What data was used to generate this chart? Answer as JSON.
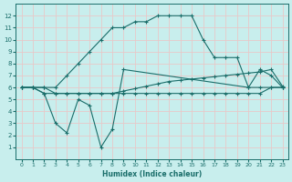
{
  "xlabel": "Humidex (Indice chaleur)",
  "xlim": [
    -0.5,
    23.5
  ],
  "ylim": [
    0,
    13
  ],
  "xticks": [
    0,
    1,
    2,
    3,
    4,
    5,
    6,
    7,
    8,
    9,
    10,
    11,
    12,
    13,
    14,
    15,
    16,
    17,
    18,
    19,
    20,
    21,
    22,
    23
  ],
  "yticks": [
    1,
    2,
    3,
    4,
    5,
    6,
    7,
    8,
    9,
    10,
    11,
    12
  ],
  "bg_color": "#c8eeed",
  "grid_color": "#e8c8c8",
  "line_color": "#1a6e6a",
  "series": [
    {
      "x": [
        0,
        1,
        2,
        3,
        4,
        5,
        6,
        7,
        8,
        9,
        10,
        11,
        12,
        13,
        14,
        15,
        16,
        17,
        18,
        19,
        20,
        21,
        22,
        23
      ],
      "y": [
        6,
        6,
        6,
        6,
        7,
        8,
        9,
        10,
        11,
        11,
        11.5,
        11.5,
        12,
        12,
        12,
        12,
        10,
        8.5,
        8.5,
        8.5,
        6,
        6,
        6,
        6
      ]
    },
    {
      "x": [
        0,
        1,
        2,
        3,
        4,
        5,
        6,
        7,
        8,
        9,
        10,
        11,
        12,
        13,
        14,
        15,
        16,
        17,
        18,
        19,
        20,
        21,
        22,
        23
      ],
      "y": [
        6,
        6,
        6,
        5.5,
        5.5,
        5.5,
        5.5,
        5.5,
        5.5,
        5.7,
        5.9,
        6.1,
        6.3,
        6.5,
        6.6,
        6.7,
        6.8,
        6.9,
        7.0,
        7.1,
        7.2,
        7.3,
        7.5,
        6.1
      ]
    },
    {
      "x": [
        0,
        1,
        2,
        3,
        4,
        5,
        6,
        7,
        8,
        9,
        10,
        11,
        12,
        13,
        14,
        15,
        16,
        17,
        18,
        19,
        20,
        21,
        22,
        23
      ],
      "y": [
        6,
        6,
        5.5,
        5.5,
        5.5,
        5.5,
        5.5,
        5.5,
        5.5,
        5.5,
        5.5,
        5.5,
        5.5,
        5.5,
        5.5,
        5.5,
        5.5,
        5.5,
        5.5,
        5.5,
        5.5,
        5.5,
        6.0,
        6.0
      ]
    },
    {
      "x": [
        0,
        1,
        2,
        3,
        4,
        5,
        6,
        7,
        8,
        9,
        20,
        21,
        22,
        23
      ],
      "y": [
        6,
        6,
        5.5,
        3,
        2.2,
        5,
        4.5,
        1,
        2.5,
        7.5,
        6,
        7.5,
        7,
        6
      ]
    }
  ]
}
